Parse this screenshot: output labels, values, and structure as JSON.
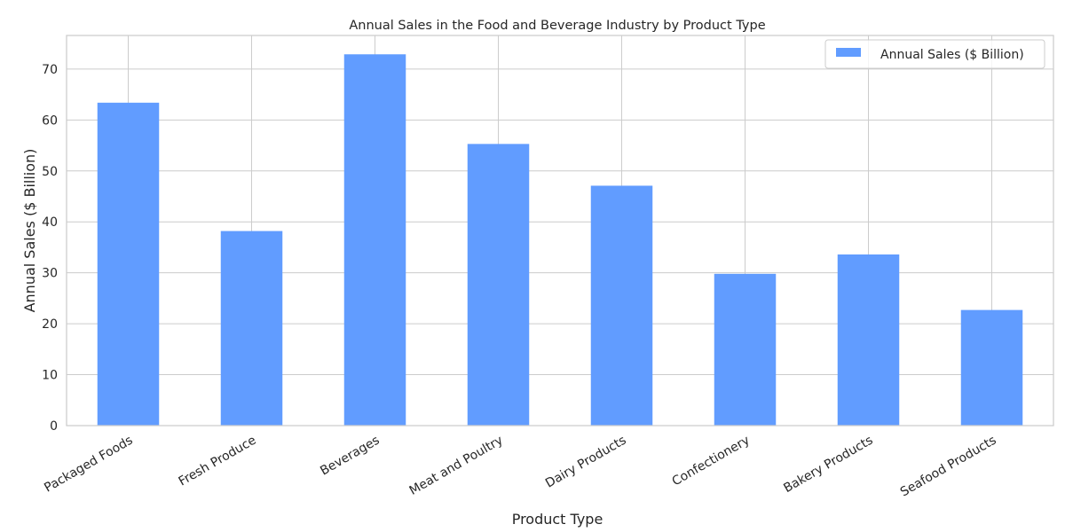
{
  "chart_data": {
    "type": "bar",
    "title": "Annual Sales in the Food and Beverage Industry by Product Type",
    "xlabel": "Product Type",
    "ylabel": "Annual Sales ($ Billion)",
    "categories": [
      "Packaged Foods",
      "Fresh Produce",
      "Beverages",
      "Meat and Poultry",
      "Dairy Products",
      "Confectionery",
      "Bakery Products",
      "Seafood Products"
    ],
    "series": [
      {
        "name": "Annual Sales ($ Billion)",
        "values": [
          63.4,
          38.2,
          72.9,
          55.3,
          47.1,
          29.8,
          33.6,
          22.7
        ]
      }
    ],
    "ylim": [
      0,
      76.6
    ],
    "yticks": [
      0,
      10,
      20,
      30,
      40,
      50,
      60,
      70
    ],
    "grid": true,
    "legend_position": "top-right",
    "colors": {
      "bar": "#619cff",
      "grid": "#cccccc",
      "axes": "#cccccc",
      "text": "#262626"
    }
  }
}
